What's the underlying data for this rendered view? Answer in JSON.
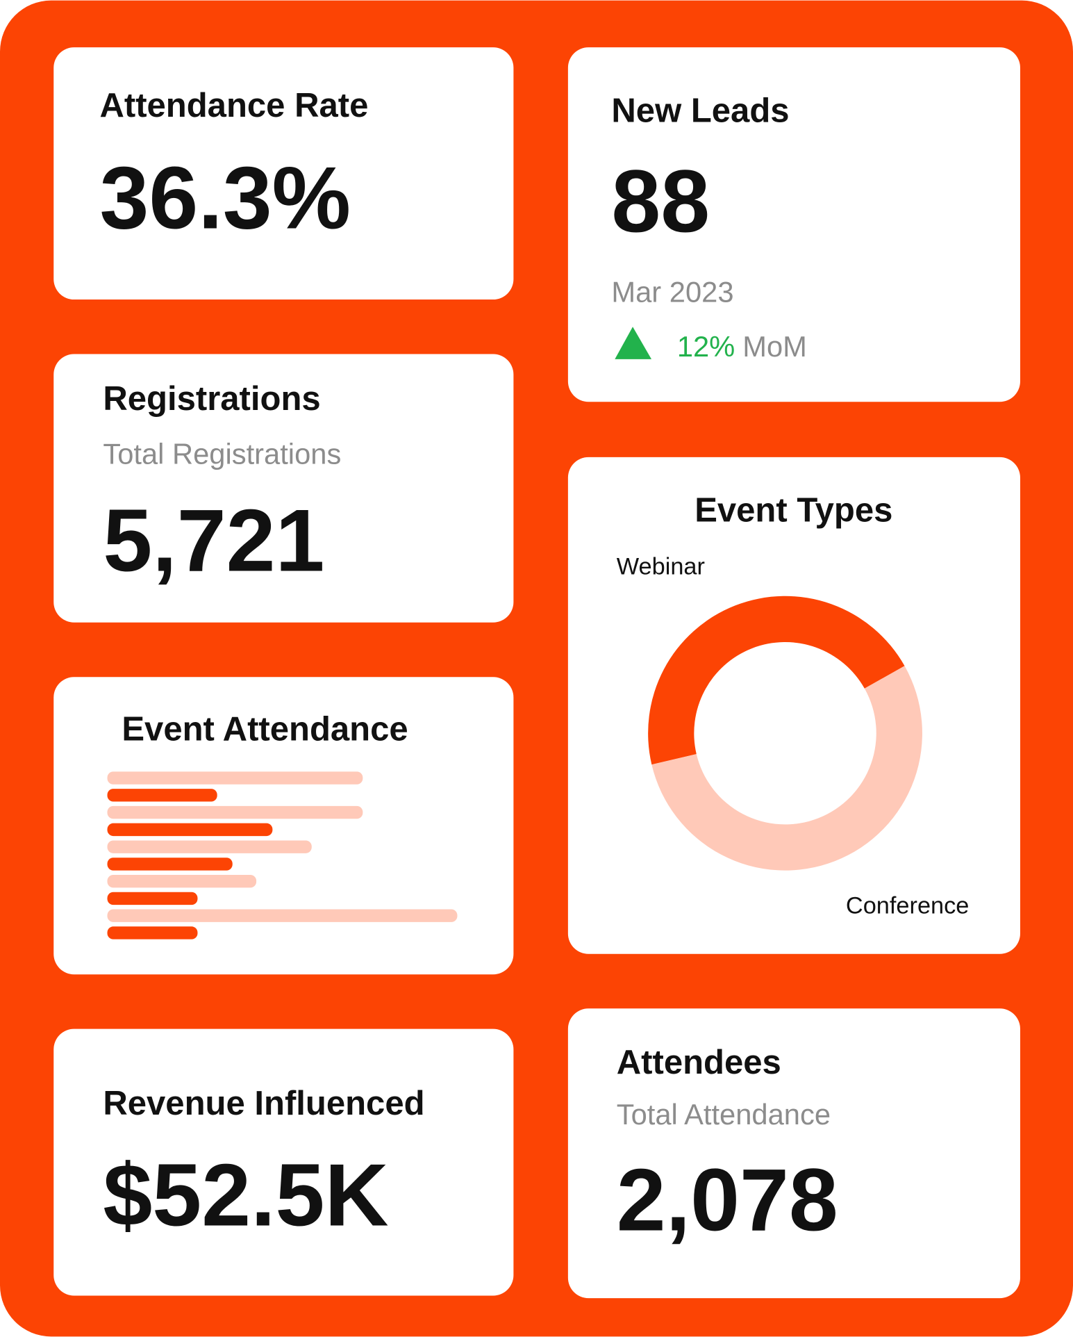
{
  "cards": {
    "attendance_rate": {
      "title": "Attendance Rate",
      "value": "36.3%"
    },
    "new_leads": {
      "title": "New Leads",
      "value": "88",
      "period": "Mar 2023",
      "change": "12%",
      "change_label": "MoM"
    },
    "registrations": {
      "title": "Registrations",
      "subtitle": "Total Registrations",
      "value": "5,721"
    },
    "revenue": {
      "title": "Revenue Influenced",
      "value": "$52.5K"
    },
    "attendees": {
      "title": "Attendees",
      "subtitle": "Total Attendance",
      "value": "2,078"
    }
  },
  "chart_data": [
    {
      "type": "bar",
      "title": "Event Attendance",
      "orientation": "horizontal",
      "xlim": [
        0,
        420
      ],
      "series": [
        {
          "color": "#ffc9b8",
          "values": [
            300,
            300,
            240,
            175,
            411
          ]
        },
        {
          "color": "#fc4404",
          "values": [
            129,
            194,
            147,
            106,
            106
          ]
        }
      ]
    },
    {
      "type": "donut",
      "title": "Event Types",
      "categories": [
        "Webinar",
        "Conference"
      ],
      "values": [
        45.5,
        54.5
      ],
      "colors": [
        "#fc4404",
        "#ffc9b8"
      ]
    }
  ]
}
